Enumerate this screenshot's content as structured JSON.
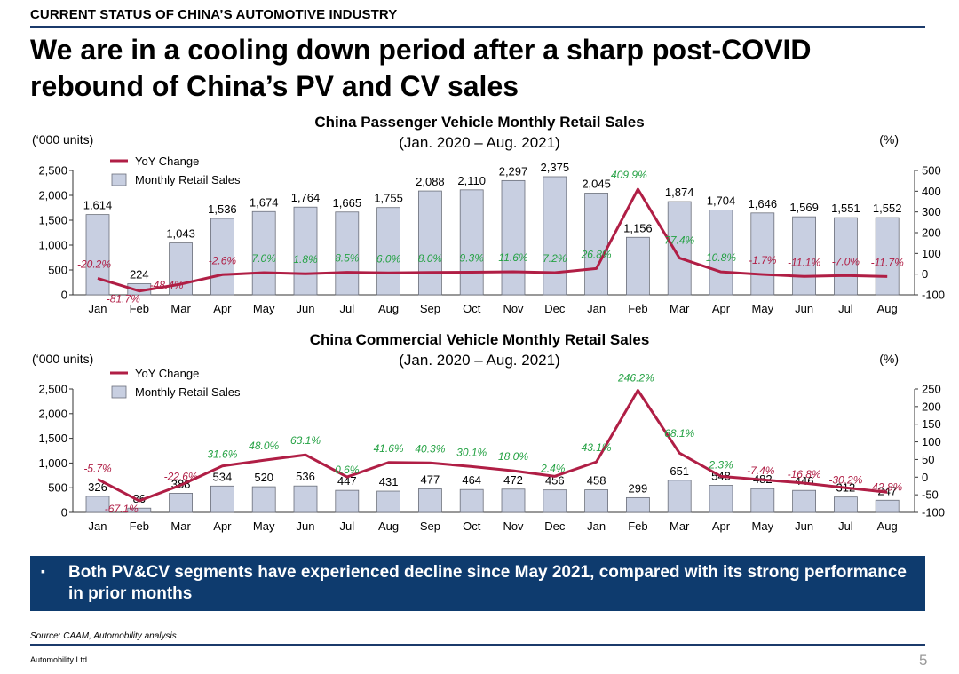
{
  "header": {
    "section_label": "CURRENT STATUS OF CHINA’S AUTOMOTIVE INDUSTRY",
    "headline_line1": "We are in a cooling down period after a sharp post-COVID",
    "headline_line2": "rebound of China’s PV and CV sales"
  },
  "colors": {
    "bar_fill": "#c8cfe1",
    "bar_stroke": "#6b6f7a",
    "line": "#b01e45",
    "label_pos": "#25a244",
    "label_neg": "#b01e45",
    "accent": "#0e3b6e"
  },
  "chart_data": [
    {
      "type": "bar",
      "title_line1": "China Passenger Vehicle Monthly Retail Sales",
      "title_line2": "(Jan. 2020 – Aug. 2021)",
      "ylabel": "(‘000 units)",
      "y2label": "(%)",
      "legend": {
        "line": "YoY Change",
        "bar": "Monthly Retail Sales"
      },
      "categories": [
        "Jan",
        "Feb",
        "Mar",
        "Apr",
        "May",
        "Jun",
        "Jul",
        "Aug",
        "Sep",
        "Oct",
        "Nov",
        "Dec",
        "Jan",
        "Feb",
        "Mar",
        "Apr",
        "May",
        "Jun",
        "Jul",
        "Aug"
      ],
      "ylim": [
        0,
        2500
      ],
      "yticks": [
        "0",
        "500",
        "1,000",
        "1,500",
        "2,000",
        "2,500"
      ],
      "y2lim": [
        -100,
        500
      ],
      "y2ticks": [
        "-100",
        "0",
        "100",
        "200",
        "300",
        "400",
        "500"
      ],
      "series": [
        {
          "name": "Monthly Retail Sales",
          "kind": "bar",
          "values": [
            1614,
            224,
            1043,
            1536,
            1674,
            1764,
            1665,
            1755,
            2088,
            2110,
            2297,
            2375,
            2045,
            1156,
            1874,
            1704,
            1646,
            1569,
            1551,
            1552
          ],
          "labels": [
            "1,614",
            "224",
            "1,043",
            "1,536",
            "1,674",
            "1,764",
            "1,665",
            "1,755",
            "2,088",
            "2,110",
            "2,297",
            "2,375",
            "2,045",
            "1,156",
            "1,874",
            "1,704",
            "1,646",
            "1,569",
            "1,551",
            "1,552"
          ]
        },
        {
          "name": "YoY Change",
          "kind": "line",
          "values": [
            -20.2,
            -81.7,
            -48.4,
            -2.6,
            7.0,
            1.8,
            8.5,
            6.0,
            8.0,
            9.3,
            11.6,
            7.2,
            26.8,
            409.9,
            77.4,
            10.8,
            -1.7,
            -11.1,
            -7.0,
            -11.7
          ],
          "labels": [
            "-20.2%",
            "-81.7%",
            "-48.4%",
            "-2.6%",
            "7.0%",
            "1.8%",
            "8.5%",
            "6.0%",
            "8.0%",
            "9.3%",
            "11.6%",
            "7.2%",
            "26.8%",
            "409.9%",
            "77.4%",
            "10.8%",
            "-1.7%",
            "-11.1%",
            "-7.0%",
            "-11.7%"
          ]
        }
      ]
    },
    {
      "type": "bar",
      "title_line1": "China Commercial Vehicle Monthly Retail Sales",
      "title_line2": "(Jan. 2020 – Aug. 2021)",
      "ylabel": "(‘000 units)",
      "y2label": "(%)",
      "legend": {
        "line": "YoY Change",
        "bar": "Monthly Retail Sales"
      },
      "categories": [
        "Jan",
        "Feb",
        "Mar",
        "Apr",
        "May",
        "Jun",
        "Jul",
        "Aug",
        "Sep",
        "Oct",
        "Nov",
        "Dec",
        "Jan",
        "Feb",
        "Mar",
        "Apr",
        "May",
        "Jun",
        "Jul",
        "Aug"
      ],
      "ylim": [
        0,
        2500
      ],
      "yticks": [
        "0",
        "500",
        "1,000",
        "1,500",
        "2,000",
        "2,500"
      ],
      "y2lim": [
        -100,
        250
      ],
      "y2ticks": [
        "-100",
        "-50",
        "0",
        "50",
        "100",
        "150",
        "200",
        "250"
      ],
      "series": [
        {
          "name": "Monthly Retail Sales",
          "kind": "bar",
          "values": [
            326,
            86,
            388,
            534,
            520,
            536,
            447,
            431,
            477,
            464,
            472,
            456,
            458,
            299,
            651,
            548,
            482,
            446,
            312,
            247
          ],
          "labels": [
            "326",
            "86",
            "388",
            "534",
            "520",
            "536",
            "447",
            "431",
            "477",
            "464",
            "472",
            "456",
            "458",
            "299",
            "651",
            "548",
            "482",
            "446",
            "312",
            "247"
          ]
        },
        {
          "name": "YoY Change",
          "kind": "line",
          "values": [
            -5.7,
            -67.1,
            -22.6,
            31.6,
            48.0,
            63.1,
            0.6,
            41.6,
            40.3,
            30.1,
            18.0,
            2.4,
            43.1,
            246.2,
            68.1,
            2.3,
            -7.4,
            -16.8,
            -30.2,
            -42.8
          ],
          "labels": [
            "-5.7%",
            "-67.1%",
            "-22.6%",
            "31.6%",
            "48.0%",
            "63.1%",
            "0.6%",
            "41.6%",
            "40.3%",
            "30.1%",
            "18.0%",
            "2.4%",
            "43.1%",
            "246.2%",
            "68.1%",
            "2.3%",
            "-7.4%",
            "-16.8%",
            "-30.2%",
            "-42.8%"
          ]
        }
      ]
    }
  ],
  "callout": {
    "bullet": "▪",
    "text": "Both PV&CV segments have experienced decline since May 2021, compared with its strong performance in prior months"
  },
  "footer": {
    "source": "Source: CAAM, Automobility analysis",
    "company": "Automobility Ltd",
    "page_number": "5"
  }
}
